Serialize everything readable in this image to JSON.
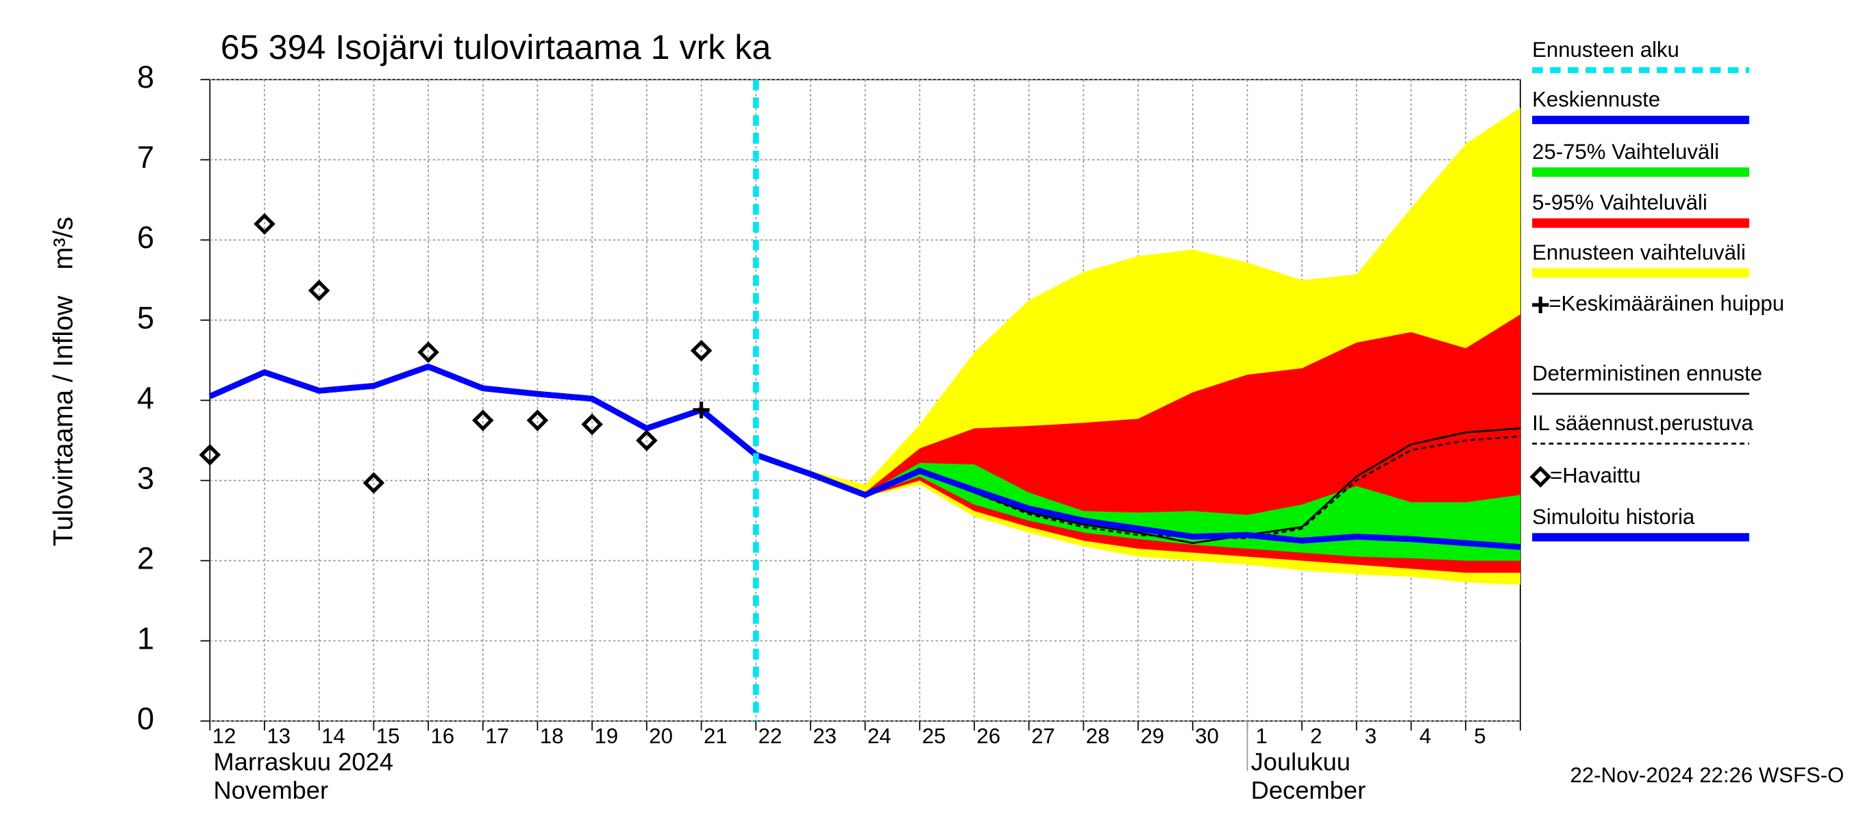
{
  "chart_data": {
    "type": "line",
    "title": "65 394 Isojärvi tulovirtaama 1 vrk ka",
    "y_label": "Tulovirtaama / Inflow",
    "y_unit": "m³/s",
    "footer": "22-Nov-2024 22:26 WSFS-O",
    "categories": [
      "12",
      "13",
      "14",
      "15",
      "16",
      "17",
      "18",
      "19",
      "20",
      "21",
      "22",
      "23",
      "24",
      "25",
      "26",
      "27",
      "28",
      "29",
      "30",
      "1",
      "2",
      "3",
      "4",
      "5",
      null
    ],
    "month_labels": [
      {
        "start": "12",
        "lines": [
          "Marraskuu 2024",
          "November"
        ]
      },
      {
        "start": "1",
        "lines": [
          "Joulukuu",
          "December"
        ]
      }
    ],
    "ylim": [
      0,
      8
    ],
    "yticks": [
      0,
      1,
      2,
      3,
      4,
      5,
      6,
      7,
      8
    ],
    "grid": true,
    "series": [
      {
        "name": "Ennusteen alku",
        "kind": "vline",
        "color": "#00e5ee",
        "at": "22"
      },
      {
        "name": "Keskiennuste",
        "kind": "line",
        "color": "#0000ff",
        "width": 5,
        "values": [
          null,
          null,
          null,
          null,
          null,
          null,
          null,
          null,
          null,
          null,
          3.32,
          3.08,
          2.82,
          3.12,
          2.88,
          2.65,
          2.5,
          2.4,
          2.3,
          2.32,
          2.25,
          2.3,
          2.27,
          2.22,
          2.17
        ]
      },
      {
        "name": "25-75% Vaihteluväli",
        "kind": "band",
        "color": "#00ee00",
        "low": [
          null,
          null,
          null,
          null,
          null,
          null,
          null,
          null,
          null,
          null,
          3.32,
          3.08,
          2.81,
          3.05,
          2.7,
          2.5,
          2.35,
          2.27,
          2.2,
          2.15,
          2.1,
          2.05,
          2.03,
          2.0,
          2.0
        ],
        "high": [
          null,
          null,
          null,
          null,
          null,
          null,
          null,
          null,
          null,
          null,
          3.32,
          3.09,
          2.83,
          3.22,
          3.2,
          2.85,
          2.62,
          2.6,
          2.62,
          2.57,
          2.7,
          2.93,
          2.73,
          2.73,
          2.82
        ]
      },
      {
        "name": "5-95% Vaihteluväli",
        "kind": "band",
        "color": "#ff0000",
        "low": [
          null,
          null,
          null,
          null,
          null,
          null,
          null,
          null,
          null,
          null,
          3.32,
          3.07,
          2.8,
          3.0,
          2.62,
          2.42,
          2.25,
          2.15,
          2.1,
          2.05,
          2.0,
          1.95,
          1.9,
          1.85,
          1.85
        ],
        "high": [
          null,
          null,
          null,
          null,
          null,
          null,
          null,
          null,
          null,
          null,
          3.32,
          3.1,
          2.85,
          3.4,
          3.65,
          3.68,
          3.72,
          3.77,
          4.1,
          4.32,
          4.4,
          4.72,
          4.85,
          4.65,
          5.07
        ]
      },
      {
        "name": "Ennusteen vaihteluväli",
        "kind": "band",
        "color": "#ffff00",
        "low": [
          null,
          null,
          null,
          null,
          null,
          null,
          null,
          null,
          null,
          null,
          3.32,
          3.05,
          2.8,
          2.95,
          2.55,
          2.35,
          2.18,
          2.05,
          2.0,
          1.95,
          1.88,
          1.83,
          1.8,
          1.73,
          1.7
        ],
        "high": [
          null,
          null,
          null,
          null,
          null,
          null,
          null,
          null,
          null,
          null,
          3.32,
          3.12,
          2.95,
          3.7,
          4.6,
          5.25,
          5.6,
          5.8,
          5.88,
          5.72,
          5.5,
          5.57,
          6.4,
          7.2,
          7.65
        ]
      },
      {
        "name": "=Keskimääräinen huippu",
        "kind": "peak",
        "color": "#000000",
        "values": [
          null,
          null,
          null,
          null,
          null,
          null,
          null,
          null,
          null,
          3.88,
          null,
          null,
          null,
          null,
          null,
          null,
          null,
          null,
          null,
          null,
          null,
          null,
          null,
          null,
          null
        ]
      },
      {
        "name": "Deterministinen ennuste",
        "kind": "line",
        "color": "#000000",
        "width": 1.6,
        "values": [
          null,
          null,
          null,
          null,
          null,
          null,
          null,
          null,
          null,
          null,
          3.32,
          3.08,
          2.82,
          3.15,
          2.85,
          2.6,
          2.45,
          2.35,
          2.22,
          2.32,
          2.42,
          3.05,
          3.45,
          3.6,
          3.65
        ]
      },
      {
        "name": "IL sääennust.perustuva",
        "kind": "line",
        "color": "#000000",
        "width": 1.6,
        "dashed": true,
        "values": [
          null,
          null,
          null,
          null,
          null,
          null,
          null,
          null,
          null,
          null,
          3.32,
          3.08,
          2.82,
          3.1,
          2.85,
          2.58,
          2.42,
          2.32,
          2.3,
          2.28,
          2.4,
          3.0,
          3.38,
          3.5,
          3.55
        ]
      },
      {
        "name": "=Havaittu",
        "kind": "scatter",
        "color": "#000000",
        "values": [
          3.32,
          6.2,
          5.37,
          2.97,
          4.6,
          3.75,
          3.75,
          3.7,
          3.5,
          4.62,
          null,
          null,
          null,
          null,
          null,
          null,
          null,
          null,
          null,
          null,
          null,
          null,
          null,
          null,
          null
        ]
      },
      {
        "name": "Simuloitu historia",
        "kind": "line",
        "color": "#0000ff",
        "width": 5,
        "values": [
          4.05,
          4.35,
          4.12,
          4.18,
          4.42,
          4.15,
          4.08,
          4.02,
          3.65,
          3.88,
          3.32,
          null,
          null,
          null,
          null,
          null,
          null,
          null,
          null,
          null,
          null,
          null,
          null,
          null,
          null
        ]
      }
    ]
  }
}
